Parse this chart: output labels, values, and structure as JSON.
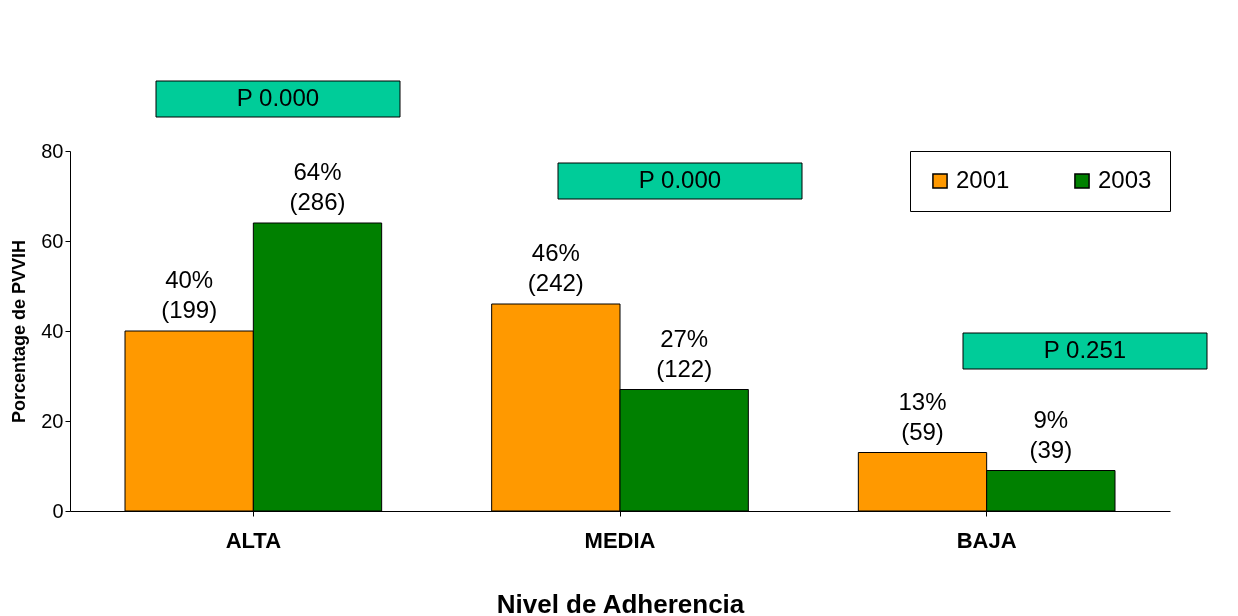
{
  "chart_data": {
    "type": "bar",
    "xlabel": "Nivel de Adherencia",
    "ylabel": "Porcentage de PVVIH",
    "categories": [
      "ALTA",
      "MEDIA",
      "BAJA"
    ],
    "series": [
      {
        "name": "2001",
        "color": "#ff9900",
        "values": [
          40,
          46,
          13
        ],
        "value_labels": [
          "40% (199)",
          "46% (242)",
          "13% (59)"
        ]
      },
      {
        "name": "2003",
        "color": "#008000",
        "values": [
          64,
          27,
          9
        ],
        "value_labels": [
          "64% (286)",
          "27% (122)",
          "9% (39)"
        ]
      }
    ],
    "ylim": [
      0,
      80
    ],
    "yticks": [
      0,
      20,
      40,
      60,
      80
    ],
    "grid": false,
    "legend": "top right",
    "annotations": [
      "P 0.000",
      "P 0.000",
      "P 0.251"
    ]
  }
}
